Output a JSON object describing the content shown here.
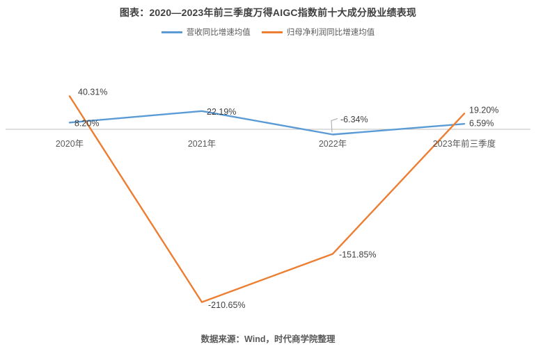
{
  "title": "图表：2020—2023年前三季度万得AIGC指数前十大成分股业绩表现",
  "source": "数据来源：Wind，时代商学院整理",
  "colors": {
    "revenue_line": "#5B9BD5",
    "profit_line": "#ED7D31",
    "axis_line": "#BFBFBF",
    "leader_line": "#A6A6A6",
    "title_text": "#3F3F3F",
    "data_label_text": "#404040",
    "axis_text": "#595959"
  },
  "chart_data": {
    "type": "line",
    "categories": [
      "2020年",
      "2021年",
      "2022年",
      "2023年前三季度"
    ],
    "series": [
      {
        "name": "营收同比增速均值",
        "color": "#5B9BD5",
        "values": [
          8.2,
          22.19,
          -6.34,
          6.59
        ],
        "labels": [
          "8.20%",
          "22.19%",
          "-6.34%",
          "6.59%"
        ]
      },
      {
        "name": "归母净利润同比增速均值",
        "color": "#ED7D31",
        "values": [
          40.31,
          -210.65,
          -151.85,
          19.2
        ],
        "labels": [
          "40.31%",
          "-210.65%",
          "-151.85%",
          "19.20%"
        ]
      }
    ],
    "ylabel": "",
    "xlabel": "",
    "grid": false,
    "legend_position": "top",
    "baseline": 0,
    "data_labels_shown": true
  }
}
